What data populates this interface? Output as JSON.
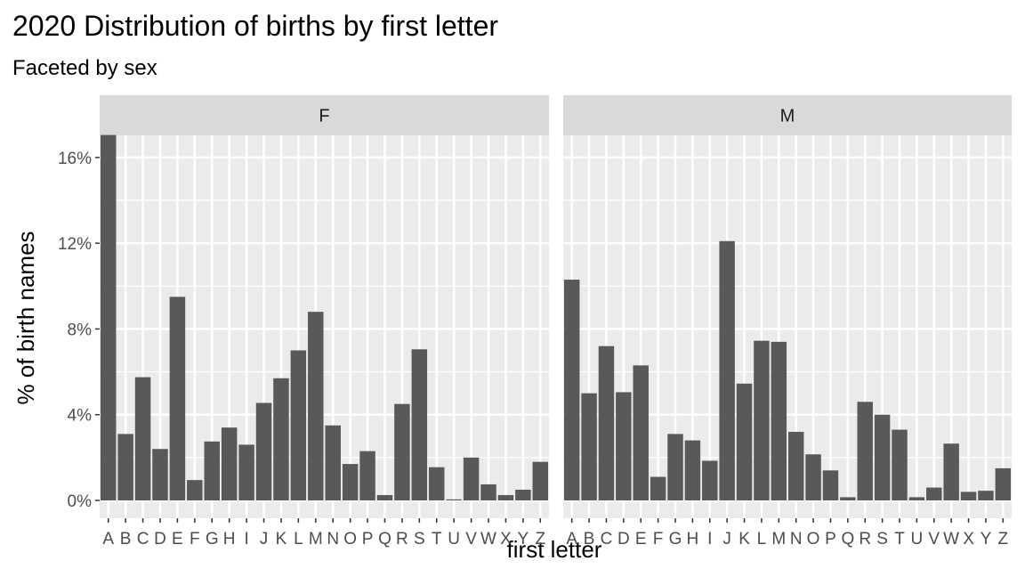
{
  "chart_data": {
    "type": "bar",
    "title": "2020 Distribution of births by first letter",
    "subtitle": "Faceted by sex",
    "xlabel": "first letter",
    "ylabel": "% of birth names",
    "ylim": [
      0,
      17
    ],
    "y_ticks": [
      0,
      4,
      8,
      12,
      16
    ],
    "y_tick_labels": [
      "0%",
      "4%",
      "8%",
      "12%",
      "16%"
    ],
    "categories": [
      "A",
      "B",
      "C",
      "D",
      "E",
      "F",
      "G",
      "H",
      "I",
      "J",
      "K",
      "L",
      "M",
      "N",
      "O",
      "P",
      "Q",
      "R",
      "S",
      "T",
      "U",
      "V",
      "W",
      "X",
      "Y",
      "Z"
    ],
    "bar_color": "#595959",
    "panel_color": "#ebebeb",
    "strip_color": "#d9d9d9",
    "grid_color": "#ffffff",
    "series": [
      {
        "name": "F",
        "values": [
          17.05,
          3.1,
          5.75,
          2.4,
          9.5,
          0.95,
          2.75,
          3.4,
          2.6,
          4.55,
          5.7,
          7.0,
          8.8,
          3.5,
          1.7,
          2.3,
          0.25,
          4.5,
          7.05,
          1.55,
          0.05,
          2.0,
          0.75,
          0.25,
          0.5,
          1.8
        ]
      },
      {
        "name": "M",
        "values": [
          10.3,
          5.0,
          7.2,
          5.05,
          6.3,
          1.1,
          3.1,
          2.8,
          1.85,
          12.1,
          5.45,
          7.45,
          7.4,
          3.2,
          2.15,
          1.4,
          0.15,
          4.6,
          4.0,
          3.3,
          0.15,
          0.6,
          2.65,
          0.4,
          0.45,
          1.5
        ]
      }
    ]
  }
}
